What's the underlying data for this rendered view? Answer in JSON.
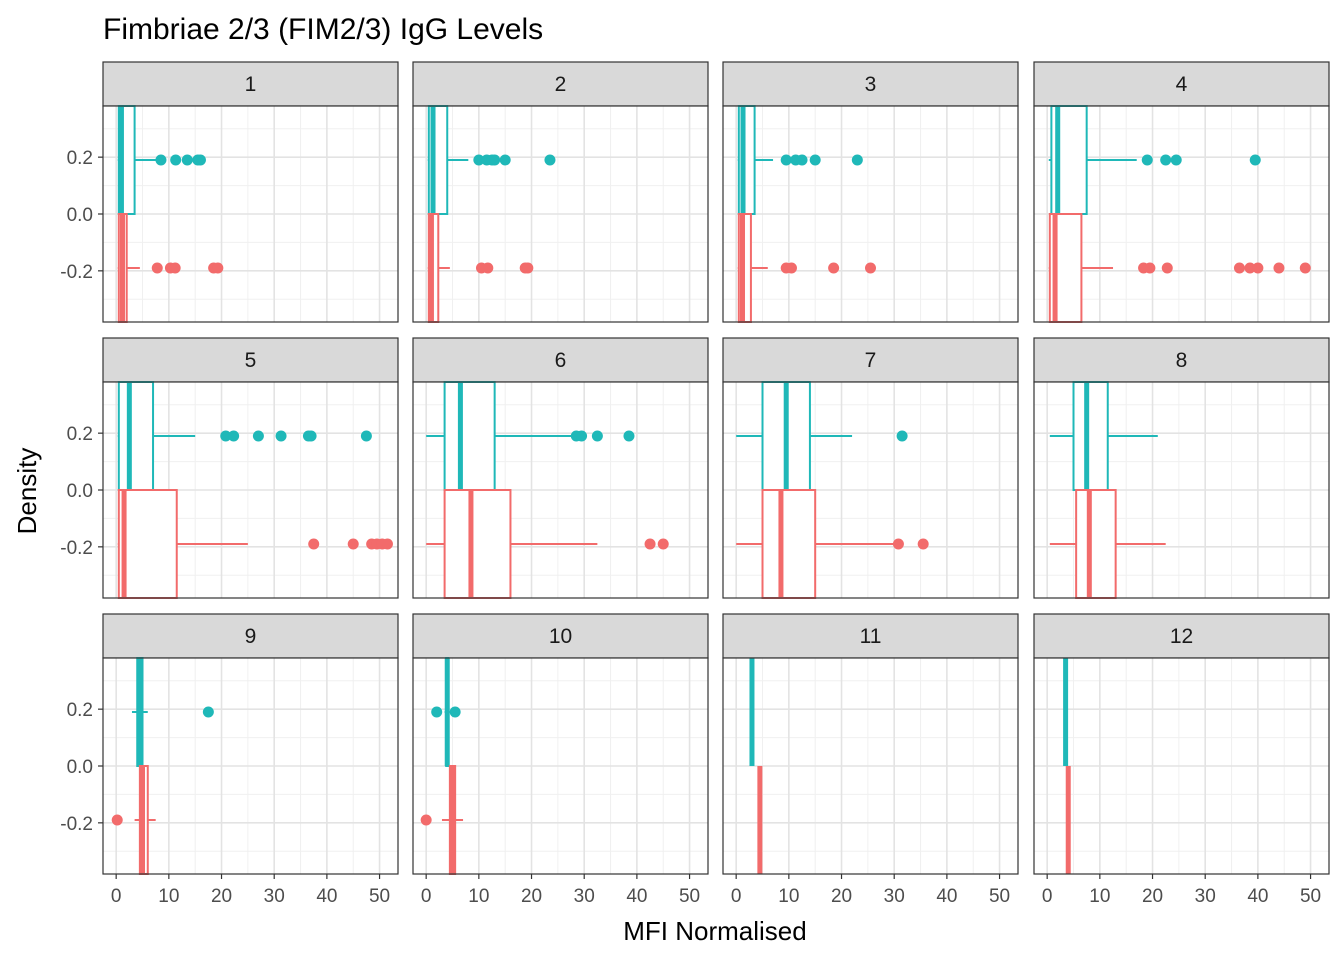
{
  "chart_data": {
    "type": "boxplot",
    "title": "Fimbriae 2/3 (FIM2/3) IgG Levels",
    "xlabel": "MFI Normalised",
    "ylabel": "Density",
    "xlim": [
      -2.5,
      53.5
    ],
    "ylim": [
      -0.38,
      0.38
    ],
    "x_ticks": [
      0,
      10,
      20,
      30,
      40,
      50
    ],
    "x_tick_labels": [
      "0",
      "10",
      "20",
      "30",
      "40",
      "50"
    ],
    "y_ticks": [
      0.2,
      0.0,
      -0.2
    ],
    "y_tick_labels": [
      "0.2",
      "0.0",
      "-0.2"
    ],
    "grid": true,
    "colors": {
      "teal": "#1fb8b8",
      "salmon": "#f26b6b"
    },
    "panels": [
      {
        "label": "1",
        "teal": {
          "wmin": 0.3,
          "q1": 0.5,
          "median": 1.0,
          "q3": 3.5,
          "wmax": 8.5,
          "outliers": [
            8.5,
            11.3,
            13.5,
            15.5,
            16.0
          ]
        },
        "salmon": {
          "wmin": 0.3,
          "q1": 0.5,
          "median": 1.2,
          "q3": 2.0,
          "wmax": 4.5,
          "outliers": [
            7.8,
            10.3,
            11.2,
            18.5,
            19.3
          ]
        }
      },
      {
        "label": "2",
        "teal": {
          "wmin": 0.3,
          "q1": 0.5,
          "median": 1.3,
          "q3": 4.0,
          "wmax": 8.0,
          "outliers": [
            10.0,
            11.5,
            12.5,
            13.0,
            15.0,
            23.5
          ]
        },
        "salmon": {
          "wmin": 0.3,
          "q1": 0.5,
          "median": 1.0,
          "q3": 2.3,
          "wmax": 4.5,
          "outliers": [
            10.5,
            11.7,
            18.8,
            19.3
          ]
        }
      },
      {
        "label": "3",
        "teal": {
          "wmin": 0.3,
          "q1": 0.5,
          "median": 1.3,
          "q3": 3.5,
          "wmax": 7.0,
          "outliers": [
            9.5,
            11.3,
            12.5,
            15.0,
            23.0
          ]
        },
        "salmon": {
          "wmin": 0.3,
          "q1": 0.5,
          "median": 1.2,
          "q3": 2.8,
          "wmax": 6.0,
          "outliers": [
            9.5,
            10.5,
            18.5,
            25.5
          ]
        }
      },
      {
        "label": "4",
        "teal": {
          "wmin": 0.3,
          "q1": 0.8,
          "median": 2.0,
          "q3": 7.5,
          "wmax": 17.0,
          "outliers": [
            19.0,
            22.5,
            24.5,
            39.5
          ]
        },
        "salmon": {
          "wmin": 0.3,
          "q1": 0.5,
          "median": 1.5,
          "q3": 6.5,
          "wmax": 12.5,
          "outliers": [
            18.3,
            19.5,
            22.8,
            36.5,
            38.5,
            40.0,
            44.0,
            49.0
          ]
        }
      },
      {
        "label": "5",
        "teal": {
          "wmin": 0.3,
          "q1": 0.5,
          "median": 2.5,
          "q3": 7.0,
          "wmax": 15.0,
          "outliers": [
            20.8,
            22.3,
            27.0,
            31.3,
            36.5,
            37.0,
            47.5
          ]
        },
        "salmon": {
          "wmin": 0.3,
          "q1": 0.5,
          "median": 1.5,
          "q3": 11.5,
          "wmax": 25.0,
          "outliers": [
            37.5,
            45.0,
            48.5,
            49.5,
            50.5,
            51.5
          ]
        }
      },
      {
        "label": "6",
        "teal": {
          "wmin": 0.0,
          "q1": 3.5,
          "median": 6.5,
          "q3": 13.0,
          "wmax": 28.0,
          "outliers": [
            28.5,
            29.5,
            32.5,
            38.5
          ]
        },
        "salmon": {
          "wmin": 0.0,
          "q1": 3.5,
          "median": 8.5,
          "q3": 16.0,
          "wmax": 32.5,
          "outliers": [
            42.5,
            45.0
          ]
        }
      },
      {
        "label": "7",
        "teal": {
          "wmin": 0.0,
          "q1": 5.0,
          "median": 9.5,
          "q3": 14.0,
          "wmax": 22.0,
          "outliers": [
            31.5
          ]
        },
        "salmon": {
          "wmin": 0.0,
          "q1": 5.0,
          "median": 8.5,
          "q3": 15.0,
          "wmax": 30.5,
          "outliers": [
            30.8,
            35.5
          ]
        }
      },
      {
        "label": "8",
        "teal": {
          "wmin": 0.5,
          "q1": 5.0,
          "median": 7.5,
          "q3": 11.5,
          "wmax": 21.0,
          "outliers": []
        },
        "salmon": {
          "wmin": 0.5,
          "q1": 5.5,
          "median": 8.0,
          "q3": 13.0,
          "wmax": 22.5,
          "outliers": []
        }
      },
      {
        "label": "9",
        "teal": {
          "wmin": 3.0,
          "q1": 4.0,
          "median": 4.5,
          "q3": 5.0,
          "wmax": 6.0,
          "outliers": [
            17.5
          ]
        },
        "salmon": {
          "wmin": 3.5,
          "q1": 4.5,
          "median": 5.0,
          "q3": 6.0,
          "wmax": 7.5,
          "outliers": [
            0.2
          ]
        }
      },
      {
        "label": "10",
        "teal": {
          "wmin": 3.5,
          "q1": 3.8,
          "median": 4.0,
          "q3": 4.2,
          "wmax": 4.5,
          "outliers": [
            2.0,
            5.5
          ]
        },
        "salmon": {
          "wmin": 3.0,
          "q1": 4.5,
          "median": 5.0,
          "q3": 5.5,
          "wmax": 7.0,
          "outliers": [
            0.0
          ]
        }
      },
      {
        "label": "11",
        "teal": {
          "wmin": 3.0,
          "q1": 3.0,
          "median": 3.0,
          "q3": 3.0,
          "wmax": 3.0,
          "outliers": []
        },
        "salmon": {
          "wmin": 4.5,
          "q1": 4.5,
          "median": 4.5,
          "q3": 4.5,
          "wmax": 4.5,
          "outliers": []
        }
      },
      {
        "label": "12",
        "teal": {
          "wmin": 3.5,
          "q1": 3.5,
          "median": 3.5,
          "q3": 3.5,
          "wmax": 3.5,
          "outliers": []
        },
        "salmon": {
          "wmin": 4.0,
          "q1": 4.0,
          "median": 4.0,
          "q3": 4.0,
          "wmax": 4.0,
          "outliers": []
        }
      }
    ]
  }
}
